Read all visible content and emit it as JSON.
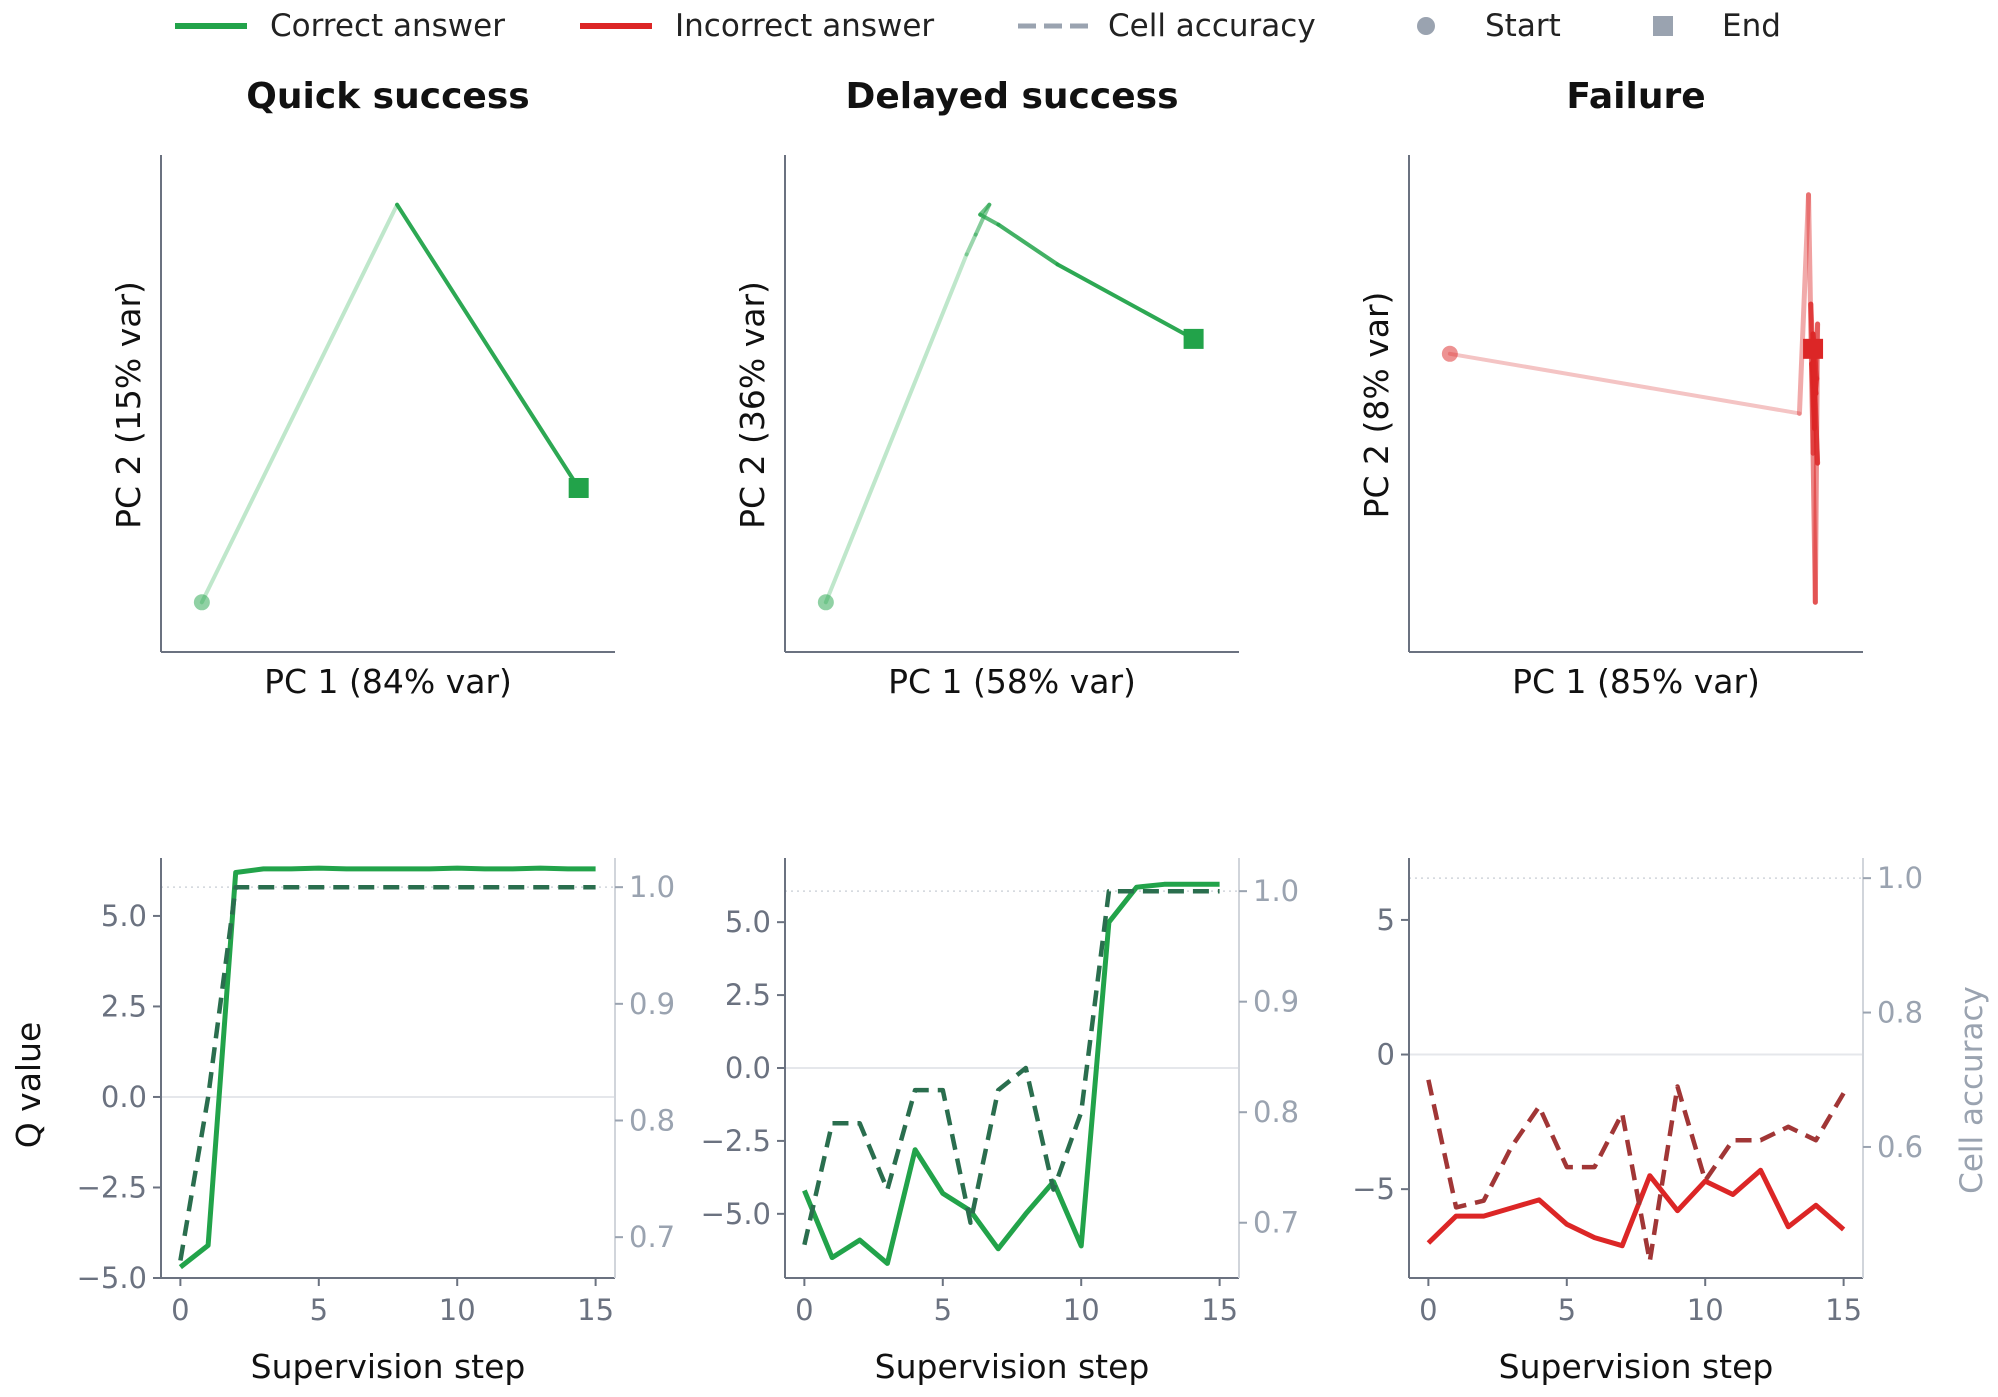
{
  "legend": [
    {
      "label": "Correct answer",
      "kind": "line",
      "color": "#22a34a"
    },
    {
      "label": "Incorrect answer",
      "kind": "line",
      "color": "#dc2626"
    },
    {
      "label": "Cell accuracy",
      "kind": "dash",
      "color": "#9aa3b0"
    },
    {
      "label": "Start",
      "kind": "circle",
      "color": "#9aa3b0"
    },
    {
      "label": "End",
      "kind": "square",
      "color": "#9aa3b0"
    }
  ],
  "colors": {
    "correct": "#22a34a",
    "correct_light": "#bfe7cb",
    "correct_dash": "#2a6e4e",
    "incorrect": "#dc2626",
    "incorrect_light": "#f4c4c4",
    "incorrect_dash": "#a13636",
    "axis": "#6b7280",
    "tick": "#6b7280",
    "right_tick": "#9aa3b0",
    "zero_line": "#e5e7eb",
    "ref_line": "#d1d5db"
  },
  "chart_data": [
    {
      "type": "line",
      "panel": "pca",
      "title": "Quick success",
      "xlabel": "PC 1 (84% var)",
      "ylabel": "PC 2 (15% var)",
      "x": [
        0.09,
        0.52,
        0.92
      ],
      "y": [
        0.1,
        0.9,
        0.33
      ],
      "start_index": 0,
      "end_index": 2,
      "outcome": "correct"
    },
    {
      "type": "line",
      "panel": "pca",
      "title": "Delayed success",
      "xlabel": "PC 1 (58% var)",
      "ylabel": "PC 2 (36% var)",
      "x": [
        0.09,
        0.4,
        0.42,
        0.45,
        0.43,
        0.47,
        0.6,
        0.9
      ],
      "y": [
        0.1,
        0.8,
        0.84,
        0.9,
        0.88,
        0.86,
        0.78,
        0.63
      ],
      "start_index": 0,
      "end_index": 7,
      "outcome": "correct"
    },
    {
      "type": "line",
      "panel": "pca",
      "title": "Failure",
      "xlabel": "PC 1 (85% var)",
      "ylabel": "PC 2 (8% var)",
      "x": [
        0.09,
        0.86,
        0.88,
        0.89,
        0.9,
        0.895,
        0.885,
        0.9,
        0.89,
        0.892,
        0.898,
        0.89,
        0.893,
        0.887,
        0.896,
        0.89
      ],
      "y": [
        0.6,
        0.48,
        0.92,
        0.4,
        0.66,
        0.1,
        0.7,
        0.38,
        0.62,
        0.5,
        0.55,
        0.64,
        0.45,
        0.58,
        0.52,
        0.61
      ],
      "start_index": 0,
      "end_index": 15,
      "outcome": "incorrect"
    },
    {
      "type": "line",
      "panel": "steps",
      "outcome": "correct",
      "xlabel": "Supervision step",
      "ylabel": "Q value",
      "y2label": "",
      "x": [
        0,
        1,
        2,
        3,
        4,
        5,
        6,
        7,
        8,
        9,
        10,
        11,
        12,
        13,
        14,
        15
      ],
      "xlim": [
        -0.7,
        15.7
      ],
      "xticks": [
        0,
        5,
        10,
        15
      ],
      "ylim": [
        -5.0,
        6.6
      ],
      "yticks": [
        5.0,
        2.5,
        0.0,
        -2.5,
        -5.0
      ],
      "ytick_labels": [
        "5.0",
        "2.5",
        "0.0",
        "−2.5",
        "−5.0"
      ],
      "y2lim": [
        0.665,
        1.025
      ],
      "y2ticks": [
        1.0,
        0.9,
        0.8,
        0.7
      ],
      "y2tick_labels": [
        "1.0",
        "0.9",
        "0.8",
        "0.7"
      ],
      "series": [
        {
          "axis": "left",
          "values": [
            -4.7,
            -4.1,
            6.2,
            6.3,
            6.3,
            6.32,
            6.3,
            6.3,
            6.3,
            6.3,
            6.32,
            6.3,
            6.3,
            6.32,
            6.3,
            6.3
          ]
        },
        {
          "axis": "right",
          "style": "dash",
          "values": [
            0.68,
            0.82,
            1.0,
            1.0,
            1.0,
            1.0,
            1.0,
            1.0,
            1.0,
            1.0,
            1.0,
            1.0,
            1.0,
            1.0,
            1.0,
            1.0
          ]
        }
      ]
    },
    {
      "type": "line",
      "panel": "steps",
      "outcome": "correct",
      "xlabel": "Supervision step",
      "ylabel": "",
      "y2label": "",
      "x": [
        0,
        1,
        2,
        3,
        4,
        5,
        6,
        7,
        8,
        9,
        10,
        11,
        12,
        13,
        14,
        15
      ],
      "xlim": [
        -0.7,
        15.7
      ],
      "xticks": [
        0,
        5,
        10,
        15
      ],
      "ylim": [
        -7.2,
        7.2
      ],
      "yticks": [
        5.0,
        2.5,
        0.0,
        -2.5,
        -5.0
      ],
      "ytick_labels": [
        "5.0",
        "2.5",
        "0.0",
        "−2.5",
        "−5.0"
      ],
      "y2lim": [
        0.65,
        1.03
      ],
      "y2ticks": [
        1.0,
        0.9,
        0.8,
        0.7
      ],
      "y2tick_labels": [
        "1.0",
        "0.9",
        "0.8",
        "0.7"
      ],
      "series": [
        {
          "axis": "left",
          "values": [
            -4.2,
            -6.5,
            -5.9,
            -6.7,
            -2.8,
            -4.3,
            -4.9,
            -6.2,
            -5.0,
            -3.9,
            -6.1,
            5.0,
            6.2,
            6.3,
            6.3,
            6.3
          ]
        },
        {
          "axis": "right",
          "style": "dash",
          "values": [
            0.68,
            0.79,
            0.79,
            0.73,
            0.82,
            0.82,
            0.7,
            0.82,
            0.84,
            0.73,
            0.8,
            1.0,
            1.0,
            1.0,
            1.0,
            1.0
          ]
        }
      ]
    },
    {
      "type": "line",
      "panel": "steps",
      "outcome": "incorrect",
      "xlabel": "Supervision step",
      "ylabel": "",
      "y2label": "Cell accuracy",
      "x": [
        0,
        1,
        2,
        3,
        4,
        5,
        6,
        7,
        8,
        9,
        10,
        11,
        12,
        13,
        14,
        15
      ],
      "xlim": [
        -0.7,
        15.7
      ],
      "xticks": [
        0,
        5,
        10,
        15
      ],
      "ylim": [
        -8.3,
        7.3
      ],
      "yticks": [
        5,
        0,
        -5
      ],
      "ytick_labels": [
        "5",
        "0",
        "−5"
      ],
      "y2lim": [
        0.405,
        1.03
      ],
      "y2ticks": [
        1.0,
        0.8,
        0.6
      ],
      "y2tick_labels": [
        "1.0",
        "0.8",
        "0.6"
      ],
      "series": [
        {
          "axis": "left",
          "values": [
            -7.0,
            -6.0,
            -6.0,
            -5.7,
            -5.4,
            -6.3,
            -6.8,
            -7.1,
            -4.5,
            -5.8,
            -4.7,
            -5.2,
            -4.3,
            -6.4,
            -5.6,
            -6.5
          ]
        },
        {
          "axis": "right",
          "style": "dash",
          "values": [
            0.7,
            0.51,
            0.52,
            0.6,
            0.66,
            0.57,
            0.57,
            0.65,
            0.43,
            0.69,
            0.55,
            0.61,
            0.61,
            0.63,
            0.61,
            0.68
          ]
        }
      ]
    }
  ]
}
